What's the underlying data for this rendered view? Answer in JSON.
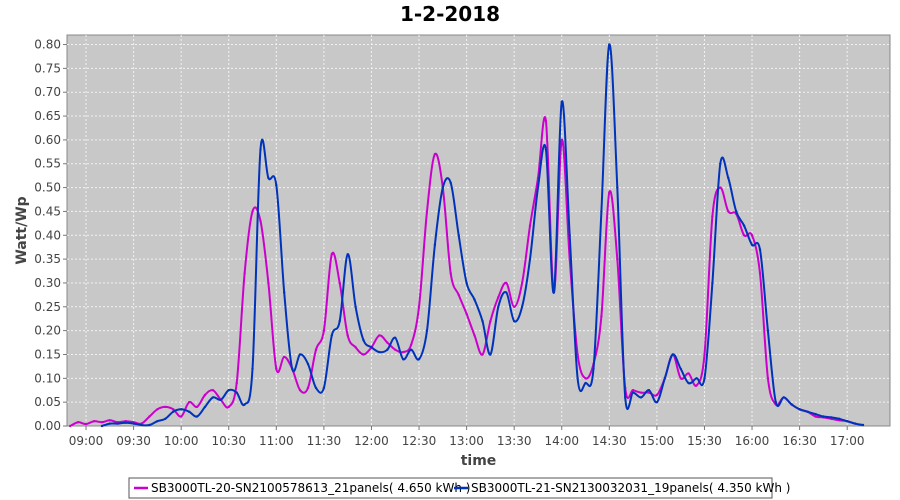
{
  "chart_data": {
    "type": "line",
    "title": "1-2-2018",
    "xlabel": "time",
    "ylabel": "Watt/Wp",
    "xlim": [
      "08:48",
      "17:27"
    ],
    "ylim": [
      0,
      0.82
    ],
    "grid": true,
    "x_ticks": [
      "09:00",
      "09:30",
      "10:00",
      "10:30",
      "11:00",
      "11:30",
      "12:00",
      "12:30",
      "13:00",
      "13:30",
      "14:00",
      "14:30",
      "15:00",
      "15:30",
      "16:00",
      "16:30",
      "17:00"
    ],
    "y_ticks": [
      "0.00",
      "0.05",
      "0.10",
      "0.15",
      "0.20",
      "0.25",
      "0.30",
      "0.35",
      "0.40",
      "0.45",
      "0.50",
      "0.55",
      "0.60",
      "0.65",
      "0.70",
      "0.75",
      "0.80"
    ],
    "legend_position": "bottom",
    "series": [
      {
        "name": "SB3000TL-20-SN2100578613_21panels( 4.650 kWh )",
        "color": "#cc00cc",
        "points": [
          [
            "08:50",
            0.0
          ],
          [
            "08:55",
            0.008
          ],
          [
            "09:00",
            0.004
          ],
          [
            "09:05",
            0.01
          ],
          [
            "09:10",
            0.008
          ],
          [
            "09:15",
            0.012
          ],
          [
            "09:20",
            0.008
          ],
          [
            "09:25",
            0.01
          ],
          [
            "09:30",
            0.008
          ],
          [
            "09:35",
            0.005
          ],
          [
            "09:40",
            0.02
          ],
          [
            "09:45",
            0.035
          ],
          [
            "09:50",
            0.04
          ],
          [
            "09:55",
            0.035
          ],
          [
            "10:00",
            0.02
          ],
          [
            "10:05",
            0.05
          ],
          [
            "10:10",
            0.04
          ],
          [
            "10:15",
            0.065
          ],
          [
            "10:20",
            0.075
          ],
          [
            "10:25",
            0.055
          ],
          [
            "10:30",
            0.04
          ],
          [
            "10:35",
            0.09
          ],
          [
            "10:40",
            0.32
          ],
          [
            "10:45",
            0.45
          ],
          [
            "10:50",
            0.43
          ],
          [
            "10:55",
            0.3
          ],
          [
            "11:00",
            0.12
          ],
          [
            "11:05",
            0.145
          ],
          [
            "11:10",
            0.12
          ],
          [
            "11:15",
            0.075
          ],
          [
            "11:20",
            0.08
          ],
          [
            "11:25",
            0.16
          ],
          [
            "11:30",
            0.2
          ],
          [
            "11:35",
            0.36
          ],
          [
            "11:40",
            0.3
          ],
          [
            "11:45",
            0.19
          ],
          [
            "11:50",
            0.165
          ],
          [
            "11:55",
            0.15
          ],
          [
            "12:00",
            0.165
          ],
          [
            "12:05",
            0.19
          ],
          [
            "12:10",
            0.175
          ],
          [
            "12:15",
            0.16
          ],
          [
            "12:20",
            0.155
          ],
          [
            "12:25",
            0.17
          ],
          [
            "12:30",
            0.25
          ],
          [
            "12:35",
            0.45
          ],
          [
            "12:40",
            0.57
          ],
          [
            "12:45",
            0.5
          ],
          [
            "12:50",
            0.32
          ],
          [
            "12:55",
            0.275
          ],
          [
            "13:00",
            0.235
          ],
          [
            "13:05",
            0.19
          ],
          [
            "13:10",
            0.15
          ],
          [
            "13:15",
            0.22
          ],
          [
            "13:20",
            0.27
          ],
          [
            "13:25",
            0.3
          ],
          [
            "13:30",
            0.25
          ],
          [
            "13:35",
            0.3
          ],
          [
            "13:40",
            0.42
          ],
          [
            "13:45",
            0.52
          ],
          [
            "13:50",
            0.64
          ],
          [
            "13:55",
            0.28
          ],
          [
            "14:00",
            0.6
          ],
          [
            "14:05",
            0.35
          ],
          [
            "14:10",
            0.15
          ],
          [
            "14:15",
            0.1
          ],
          [
            "14:20",
            0.13
          ],
          [
            "14:25",
            0.23
          ],
          [
            "14:30",
            0.49
          ],
          [
            "14:35",
            0.35
          ],
          [
            "14:40",
            0.08
          ],
          [
            "14:45",
            0.075
          ],
          [
            "14:50",
            0.07
          ],
          [
            "14:55",
            0.07
          ],
          [
            "15:00",
            0.065
          ],
          [
            "15:05",
            0.1
          ],
          [
            "15:10",
            0.15
          ],
          [
            "15:15",
            0.1
          ],
          [
            "15:20",
            0.11
          ],
          [
            "15:25",
            0.085
          ],
          [
            "15:30",
            0.15
          ],
          [
            "15:35",
            0.44
          ],
          [
            "15:40",
            0.5
          ],
          [
            "15:45",
            0.45
          ],
          [
            "15:50",
            0.445
          ],
          [
            "15:55",
            0.4
          ],
          [
            "16:00",
            0.4
          ],
          [
            "16:05",
            0.32
          ],
          [
            "16:10",
            0.1
          ],
          [
            "16:15",
            0.045
          ],
          [
            "16:20",
            0.06
          ],
          [
            "16:25",
            0.045
          ],
          [
            "16:30",
            0.035
          ],
          [
            "16:35",
            0.03
          ],
          [
            "16:40",
            0.02
          ],
          [
            "16:45",
            0.018
          ],
          [
            "16:50",
            0.015
          ],
          [
            "16:55",
            0.012
          ],
          [
            "17:00",
            0.01
          ],
          [
            "17:05",
            0.005
          ]
        ]
      },
      {
        "name": "SB3000TL-21-SN2130032031_19panels( 4.350 kWh )",
        "color": "#0033bb",
        "points": [
          [
            "09:10",
            0.0
          ],
          [
            "09:15",
            0.005
          ],
          [
            "09:20",
            0.005
          ],
          [
            "09:25",
            0.007
          ],
          [
            "09:30",
            0.005
          ],
          [
            "09:35",
            0.002
          ],
          [
            "09:40",
            0.002
          ],
          [
            "09:45",
            0.01
          ],
          [
            "09:50",
            0.015
          ],
          [
            "09:55",
            0.03
          ],
          [
            "10:00",
            0.035
          ],
          [
            "10:05",
            0.03
          ],
          [
            "10:10",
            0.02
          ],
          [
            "10:15",
            0.04
          ],
          [
            "10:20",
            0.06
          ],
          [
            "10:25",
            0.055
          ],
          [
            "10:30",
            0.075
          ],
          [
            "10:35",
            0.07
          ],
          [
            "10:40",
            0.045
          ],
          [
            "10:45",
            0.12
          ],
          [
            "10:50",
            0.58
          ],
          [
            "10:55",
            0.52
          ],
          [
            "11:00",
            0.505
          ],
          [
            "11:05",
            0.28
          ],
          [
            "11:10",
            0.12
          ],
          [
            "11:15",
            0.15
          ],
          [
            "11:20",
            0.13
          ],
          [
            "11:25",
            0.08
          ],
          [
            "11:30",
            0.08
          ],
          [
            "11:35",
            0.19
          ],
          [
            "11:40",
            0.22
          ],
          [
            "11:45",
            0.36
          ],
          [
            "11:50",
            0.25
          ],
          [
            "11:55",
            0.18
          ],
          [
            "12:00",
            0.165
          ],
          [
            "12:05",
            0.155
          ],
          [
            "12:10",
            0.16
          ],
          [
            "12:15",
            0.185
          ],
          [
            "12:20",
            0.14
          ],
          [
            "12:25",
            0.16
          ],
          [
            "12:30",
            0.14
          ],
          [
            "12:35",
            0.2
          ],
          [
            "12:40",
            0.38
          ],
          [
            "12:45",
            0.5
          ],
          [
            "12:50",
            0.51
          ],
          [
            "12:55",
            0.4
          ],
          [
            "13:00",
            0.3
          ],
          [
            "13:05",
            0.265
          ],
          [
            "13:10",
            0.22
          ],
          [
            "13:15",
            0.15
          ],
          [
            "13:20",
            0.25
          ],
          [
            "13:25",
            0.28
          ],
          [
            "13:30",
            0.22
          ],
          [
            "13:35",
            0.25
          ],
          [
            "13:40",
            0.35
          ],
          [
            "13:45",
            0.5
          ],
          [
            "13:50",
            0.58
          ],
          [
            "13:55",
            0.28
          ],
          [
            "14:00",
            0.68
          ],
          [
            "14:05",
            0.4
          ],
          [
            "14:10",
            0.1
          ],
          [
            "14:15",
            0.09
          ],
          [
            "14:20",
            0.12
          ],
          [
            "14:25",
            0.45
          ],
          [
            "14:30",
            0.8
          ],
          [
            "14:35",
            0.5
          ],
          [
            "14:40",
            0.06
          ],
          [
            "14:45",
            0.07
          ],
          [
            "14:50",
            0.06
          ],
          [
            "14:55",
            0.075
          ],
          [
            "15:00",
            0.05
          ],
          [
            "15:05",
            0.1
          ],
          [
            "15:10",
            0.15
          ],
          [
            "15:15",
            0.12
          ],
          [
            "15:20",
            0.09
          ],
          [
            "15:25",
            0.1
          ],
          [
            "15:30",
            0.1
          ],
          [
            "15:35",
            0.3
          ],
          [
            "15:40",
            0.55
          ],
          [
            "15:45",
            0.52
          ],
          [
            "15:50",
            0.45
          ],
          [
            "15:55",
            0.42
          ],
          [
            "16:00",
            0.38
          ],
          [
            "16:05",
            0.37
          ],
          [
            "16:10",
            0.2
          ],
          [
            "16:15",
            0.05
          ],
          [
            "16:20",
            0.06
          ],
          [
            "16:25",
            0.045
          ],
          [
            "16:30",
            0.035
          ],
          [
            "16:35",
            0.03
          ],
          [
            "16:40",
            0.025
          ],
          [
            "16:45",
            0.02
          ],
          [
            "16:50",
            0.018
          ],
          [
            "16:55",
            0.015
          ],
          [
            "17:00",
            0.01
          ],
          [
            "17:05",
            0.005
          ],
          [
            "17:10",
            0.002
          ]
        ]
      }
    ]
  }
}
